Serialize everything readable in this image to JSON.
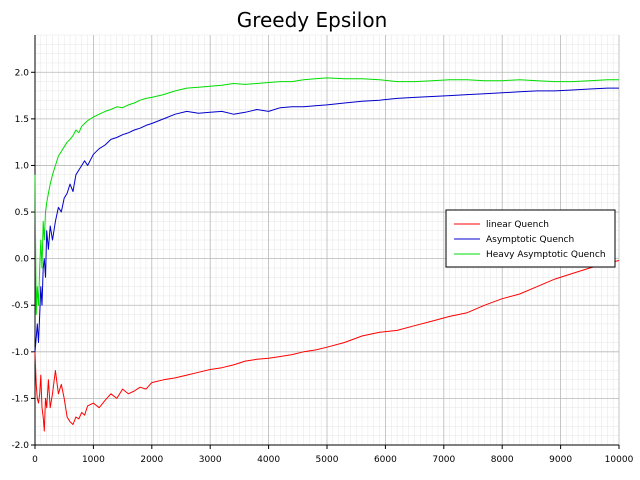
{
  "chart_data": {
    "type": "line",
    "title": "Greedy Epsilon",
    "xlabel": "",
    "ylabel": "",
    "xlim": [
      0,
      10000
    ],
    "ylim": [
      -2.0,
      2.4
    ],
    "x_ticks": [
      "0",
      "1000",
      "2000",
      "3000",
      "4000",
      "5000",
      "6000",
      "7000",
      "8000",
      "9000",
      "10000"
    ],
    "y_ticks": [
      "-2.0",
      "-1.5",
      "-1.0",
      "-0.5",
      "0.0",
      "0.5",
      "1.0",
      "1.5",
      "2.0"
    ],
    "grid": true,
    "legend_position": "right",
    "series": [
      {
        "name": "linear Quench",
        "color": "#ff0000",
        "x": [
          0,
          20,
          40,
          60,
          80,
          100,
          120,
          140,
          160,
          180,
          200,
          230,
          260,
          300,
          350,
          400,
          450,
          500,
          550,
          600,
          650,
          700,
          750,
          800,
          850,
          900,
          1000,
          1100,
          1200,
          1300,
          1400,
          1500,
          1600,
          1700,
          1800,
          1900,
          2000,
          2200,
          2400,
          2600,
          2800,
          3000,
          3200,
          3400,
          3600,
          3800,
          4000,
          4200,
          4400,
          4600,
          4800,
          5000,
          5300,
          5600,
          5900,
          6200,
          6500,
          6800,
          7100,
          7400,
          7700,
          8000,
          8300,
          8600,
          8900,
          9200,
          9500,
          9800,
          10000
        ],
        "y": [
          -1.0,
          -1.35,
          -1.5,
          -1.55,
          -1.45,
          -1.25,
          -1.6,
          -1.7,
          -1.85,
          -1.5,
          -1.6,
          -1.3,
          -1.6,
          -1.45,
          -1.2,
          -1.45,
          -1.35,
          -1.5,
          -1.7,
          -1.75,
          -1.78,
          -1.7,
          -1.72,
          -1.65,
          -1.68,
          -1.58,
          -1.55,
          -1.6,
          -1.52,
          -1.45,
          -1.5,
          -1.4,
          -1.45,
          -1.42,
          -1.38,
          -1.4,
          -1.33,
          -1.3,
          -1.28,
          -1.25,
          -1.22,
          -1.19,
          -1.17,
          -1.14,
          -1.1,
          -1.08,
          -1.07,
          -1.05,
          -1.03,
          -1.0,
          -0.98,
          -0.95,
          -0.9,
          -0.83,
          -0.79,
          -0.77,
          -0.72,
          -0.67,
          -0.62,
          -0.58,
          -0.5,
          -0.43,
          -0.38,
          -0.3,
          -0.22,
          -0.16,
          -0.1,
          -0.05,
          -0.02
        ]
      },
      {
        "name": "Asymptotic Quench",
        "color": "#0000cc",
        "x": [
          0,
          20,
          40,
          60,
          80,
          100,
          120,
          140,
          160,
          180,
          200,
          230,
          260,
          300,
          350,
          400,
          450,
          500,
          550,
          600,
          650,
          700,
          750,
          800,
          850,
          900,
          1000,
          1100,
          1200,
          1300,
          1400,
          1500,
          1600,
          1700,
          1800,
          1900,
          2000,
          2200,
          2400,
          2600,
          2800,
          3000,
          3200,
          3400,
          3600,
          3800,
          4000,
          4200,
          4400,
          4600,
          4800,
          5000,
          5300,
          5600,
          5900,
          6200,
          6500,
          6800,
          7100,
          7400,
          7700,
          8000,
          8300,
          8600,
          8900,
          9200,
          9500,
          9800,
          10000
        ],
        "y": [
          -1.0,
          -0.85,
          -0.7,
          -0.9,
          -0.6,
          -0.3,
          -0.5,
          -0.1,
          0.0,
          -0.2,
          0.3,
          0.1,
          0.35,
          0.2,
          0.4,
          0.55,
          0.5,
          0.65,
          0.7,
          0.8,
          0.72,
          0.9,
          0.95,
          1.0,
          1.05,
          1.0,
          1.12,
          1.18,
          1.22,
          1.28,
          1.3,
          1.33,
          1.35,
          1.38,
          1.4,
          1.43,
          1.45,
          1.5,
          1.55,
          1.58,
          1.56,
          1.57,
          1.58,
          1.55,
          1.57,
          1.6,
          1.58,
          1.62,
          1.63,
          1.63,
          1.64,
          1.65,
          1.67,
          1.69,
          1.7,
          1.72,
          1.73,
          1.74,
          1.75,
          1.76,
          1.77,
          1.78,
          1.79,
          1.8,
          1.8,
          1.81,
          1.82,
          1.83,
          1.83
        ]
      },
      {
        "name": "Heavy Asymptotic Quench",
        "color": "#00dd00",
        "x": [
          0,
          20,
          40,
          60,
          80,
          100,
          120,
          140,
          160,
          180,
          200,
          230,
          260,
          300,
          350,
          400,
          450,
          500,
          550,
          600,
          650,
          700,
          750,
          800,
          850,
          900,
          1000,
          1100,
          1200,
          1300,
          1400,
          1500,
          1600,
          1700,
          1800,
          1900,
          2000,
          2200,
          2400,
          2600,
          2800,
          3000,
          3200,
          3400,
          3600,
          3800,
          4000,
          4200,
          4400,
          4600,
          4800,
          5000,
          5300,
          5600,
          5900,
          6200,
          6500,
          6800,
          7100,
          7400,
          7700,
          8000,
          8300,
          8600,
          8900,
          9200,
          9500,
          9800,
          10000
        ],
        "y": [
          0.9,
          -0.6,
          -0.3,
          -0.5,
          -0.1,
          0.2,
          -0.1,
          0.4,
          0.2,
          0.5,
          0.6,
          0.7,
          0.8,
          0.9,
          1.0,
          1.1,
          1.15,
          1.2,
          1.25,
          1.28,
          1.32,
          1.38,
          1.35,
          1.42,
          1.45,
          1.48,
          1.52,
          1.55,
          1.58,
          1.6,
          1.63,
          1.62,
          1.65,
          1.67,
          1.7,
          1.72,
          1.73,
          1.76,
          1.8,
          1.83,
          1.84,
          1.85,
          1.86,
          1.88,
          1.87,
          1.88,
          1.89,
          1.9,
          1.9,
          1.92,
          1.93,
          1.94,
          1.93,
          1.93,
          1.92,
          1.9,
          1.9,
          1.91,
          1.92,
          1.92,
          1.91,
          1.91,
          1.92,
          1.91,
          1.9,
          1.9,
          1.91,
          1.92,
          1.92
        ]
      }
    ]
  }
}
